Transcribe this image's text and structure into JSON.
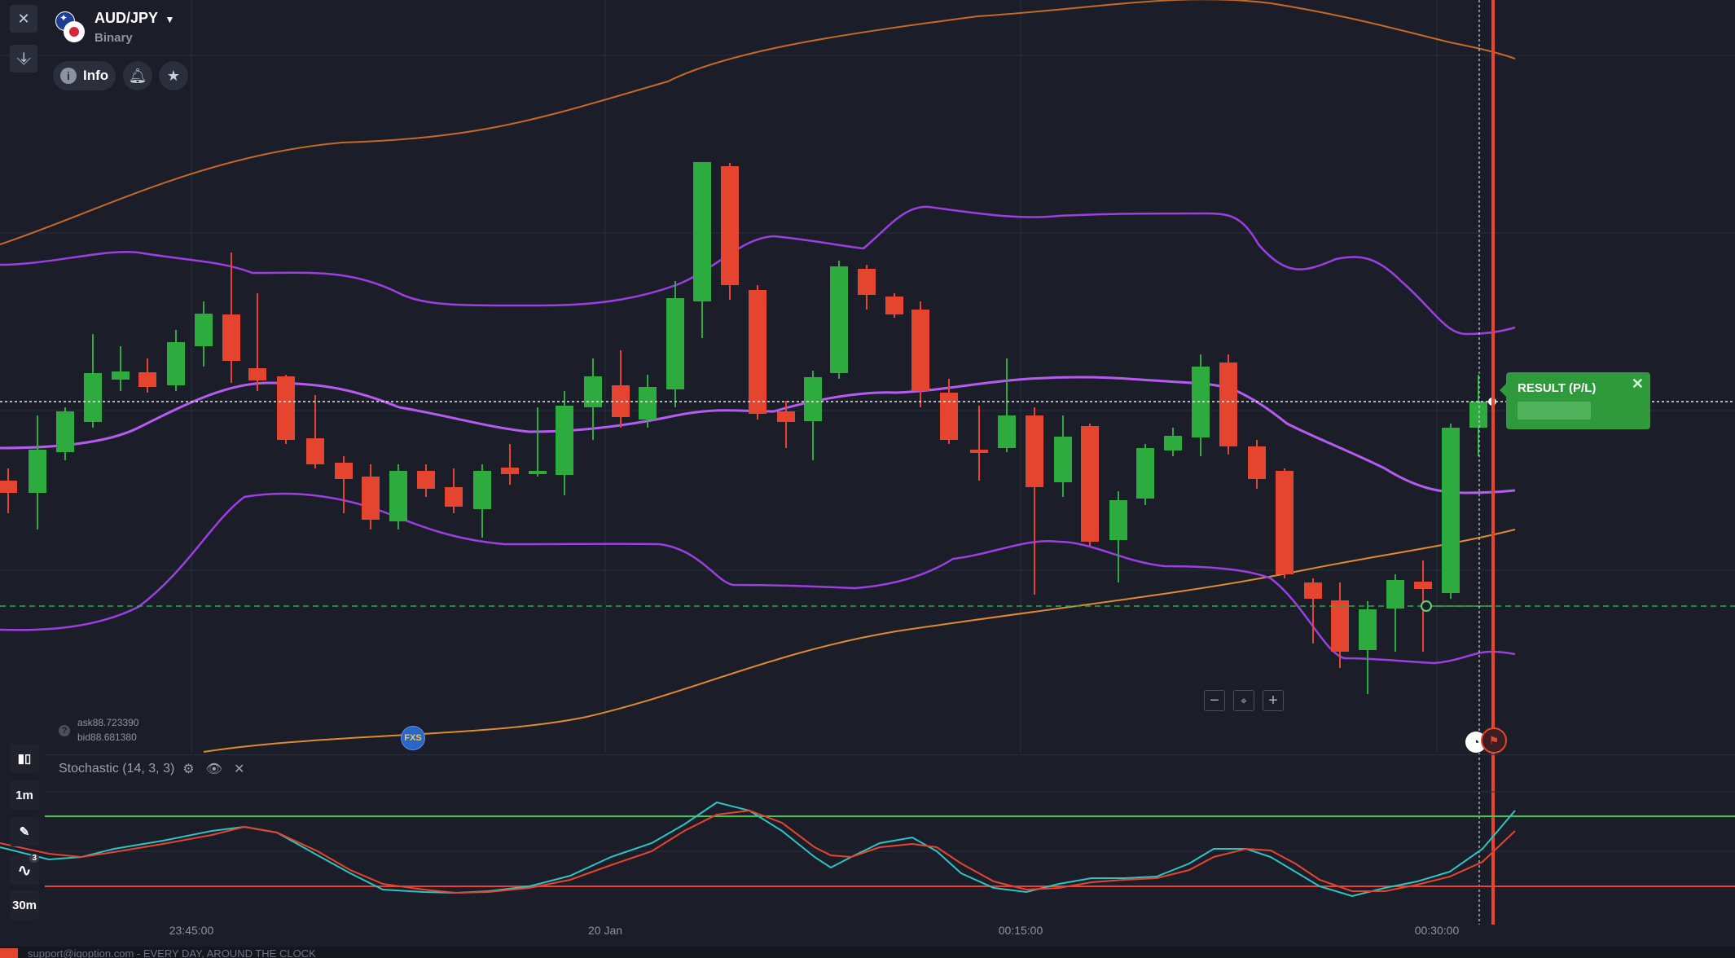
{
  "asset": {
    "pair": "AUD/JPY",
    "type": "Binary",
    "info_label": "Info"
  },
  "quotes": {
    "ask_label": "ask",
    "ask_value": "88.723390",
    "bid_label": "bid",
    "bid_value": "88.681380"
  },
  "result": {
    "title": "RESULT (P/L)",
    "value": ""
  },
  "indicator": {
    "name": "Stochastic (14, 3, 3)"
  },
  "timeframes": {
    "candle": "1m",
    "period": "30m",
    "indicator_count": "3"
  },
  "time_axis": [
    "23:45:00",
    "20 Jan",
    "00:15:00",
    "00:30:00"
  ],
  "badge": "FXS",
  "footer": {
    "text": "support@iqoption.com - EVERY DAY, AROUND THE CLOCK"
  },
  "colors": {
    "background": "#1b1e29",
    "bull": "#2eab3e",
    "bear": "#e5452f",
    "bollinger": "#a23ee0",
    "envelope": "#d9772a",
    "stoch_k": "#2ec4c4",
    "stoch_d": "#e5452f",
    "expiry": "#e8452a",
    "result_bg": "#2e9a3c"
  },
  "icons": {
    "close": "close-icon",
    "collapse": "collapse-icon",
    "info": "info-icon",
    "bell": "bell-icon",
    "star": "star-icon",
    "pencil": "pencil-icon",
    "wave": "indicator-wave-icon",
    "candle": "candle-type-icon",
    "gear": "gear-icon",
    "eye": "eye-icon"
  }
}
